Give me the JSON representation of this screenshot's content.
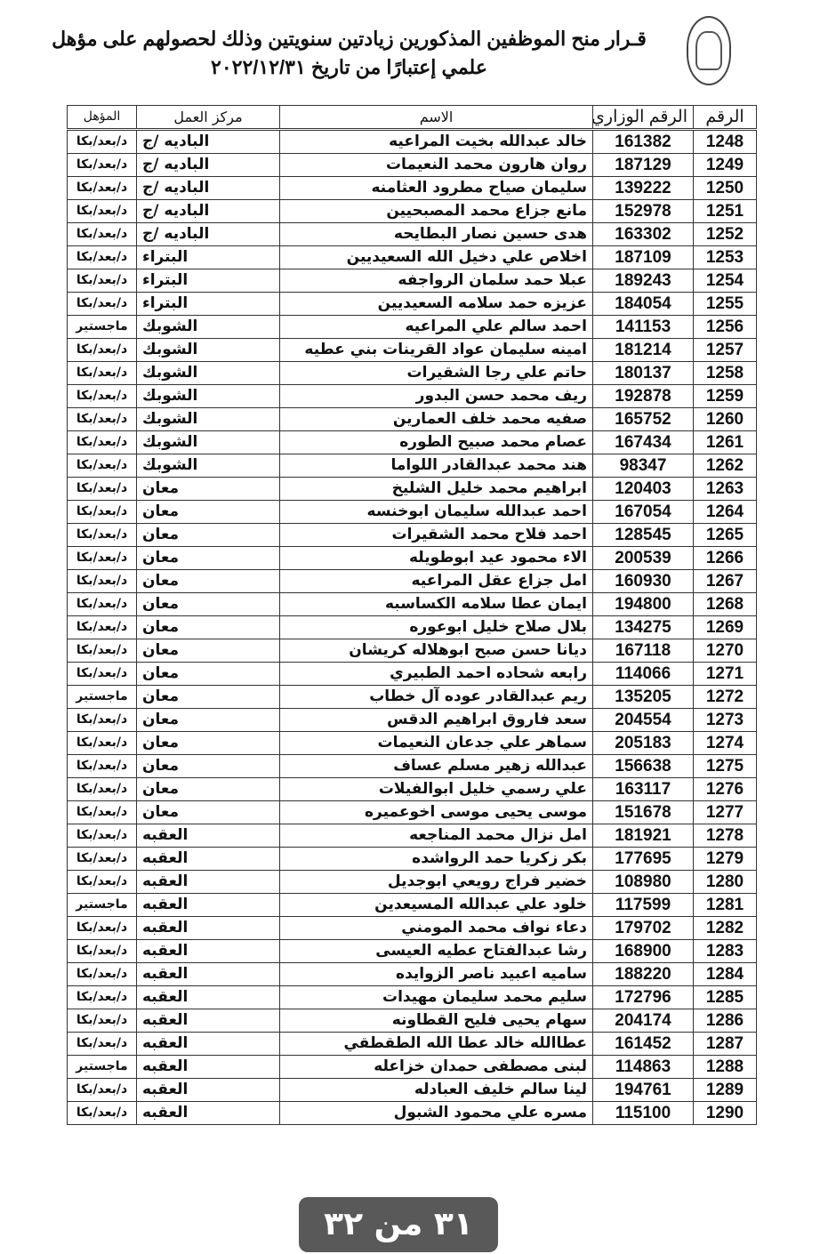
{
  "header": {
    "title_line1": "قـرار منح الموظفين المذكورين زيادتين سنويتين وذلك لحصولهم على مؤهل",
    "title_line2": "علمي إعتبارًا من تاريخ ٢٠٢٢/١٢/٣١",
    "logo": "ministry-emblem"
  },
  "table": {
    "columns": {
      "no": "الرقم",
      "id": "الرقم الوزاري",
      "name": "الاسم",
      "center": "مركز العمل",
      "qual": "المؤهل"
    },
    "rows": [
      [
        "1248",
        "161382",
        "خالد عبدالله بخيت المراعيه",
        "الباديه /ج",
        "د/بعد/بكا"
      ],
      [
        "1249",
        "187129",
        "روان هارون محمد النعيمات",
        "الباديه /ج",
        "د/بعد/بكا"
      ],
      [
        "1250",
        "139222",
        "سليمان صياح مطرود العثامنه",
        "الباديه /ج",
        "د/بعد/بكا"
      ],
      [
        "1251",
        "152978",
        "مانع جزاع محمد المصبحيين",
        "الباديه /ج",
        "د/بعد/بكا"
      ],
      [
        "1252",
        "163302",
        "هدى حسين نصار البطايحه",
        "الباديه /ج",
        "د/بعد/بكا"
      ],
      [
        "1253",
        "187109",
        "اخلاص علي دخيل الله السعيديين",
        "البتراء",
        "د/بعد/بكا"
      ],
      [
        "1254",
        "189243",
        "عبلا حمد سلمان الرواجفه",
        "البتراء",
        "د/بعد/بكا"
      ],
      [
        "1255",
        "184054",
        "عزيزه حمد سلامه السعيديين",
        "البتراء",
        "د/بعد/بكا"
      ],
      [
        "1256",
        "141153",
        "احمد سالم علي المراعيه",
        "الشوبك",
        "ماجستير"
      ],
      [
        "1257",
        "181214",
        "امينه سليمان عواد القرينات بني عطيه",
        "الشوبك",
        "د/بعد/بكا"
      ],
      [
        "1258",
        "180137",
        "حاتم علي رجا الشقيرات",
        "الشوبك",
        "د/بعد/بكا"
      ],
      [
        "1259",
        "192878",
        "ريف محمد حسن البدور",
        "الشوبك",
        "د/بعد/بكا"
      ],
      [
        "1260",
        "165752",
        "صفيه محمد خلف العمارين",
        "الشوبك",
        "د/بعد/بكا"
      ],
      [
        "1261",
        "167434",
        "عصام محمد صبيح الطوره",
        "الشوبك",
        "د/بعد/بكا"
      ],
      [
        "1262",
        "98347",
        "هند محمد عبدالقادر اللواما",
        "الشوبك",
        "د/بعد/بكا"
      ],
      [
        "1263",
        "120403",
        "ابراهيم محمد خليل الشليخ",
        "معان",
        "د/بعد/بكا"
      ],
      [
        "1264",
        "167054",
        "احمد عبدالله سليمان ابوخنسه",
        "معان",
        "د/بعد/بكا"
      ],
      [
        "1265",
        "128545",
        "احمد فلاح محمد الشقيرات",
        "معان",
        "د/بعد/بكا"
      ],
      [
        "1266",
        "200539",
        "الاء محمود عيد ابوطويله",
        "معان",
        "د/بعد/بكا"
      ],
      [
        "1267",
        "160930",
        "امل جزاع عقل المراعيه",
        "معان",
        "د/بعد/بكا"
      ],
      [
        "1268",
        "194800",
        "ايمان عطا سلامه الكساسبه",
        "معان",
        "د/بعد/بكا"
      ],
      [
        "1269",
        "134275",
        "بلال صلاح خليل ابوعوره",
        "معان",
        "د/بعد/بكا"
      ],
      [
        "1270",
        "167118",
        "ديانا حسن صبح ابوهلاله كريشان",
        "معان",
        "د/بعد/بكا"
      ],
      [
        "1271",
        "114066",
        "رابعه شحاده احمد الطبيري",
        "معان",
        "د/بعد/بكا"
      ],
      [
        "1272",
        "135205",
        "ريم عبدالقادر عوده آل خطاب",
        "معان",
        "ماجستير"
      ],
      [
        "1273",
        "204554",
        "سعد فاروق ابراهيم الدقس",
        "معان",
        "د/بعد/بكا"
      ],
      [
        "1274",
        "205183",
        "سماهر علي جدعان النعيمات",
        "معان",
        "د/بعد/بكا"
      ],
      [
        "1275",
        "156638",
        "عبدالله زهير مسلم عساف",
        "معان",
        "د/بعد/بكا"
      ],
      [
        "1276",
        "163117",
        "علي رسمي خليل ابوالفيلات",
        "معان",
        "د/بعد/بكا"
      ],
      [
        "1277",
        "151678",
        "موسى يحيى موسى اخوعميره",
        "معان",
        "د/بعد/بكا"
      ],
      [
        "1278",
        "181921",
        "امل نزال محمد المناجعه",
        "العقبه",
        "د/بعد/بكا"
      ],
      [
        "1279",
        "177695",
        "بكر زكريا حمد الرواشده",
        "العقبه",
        "د/بعد/بكا"
      ],
      [
        "1280",
        "108980",
        "خضير فراج رويعي ابوجديل",
        "العقبه",
        "د/بعد/بكا"
      ],
      [
        "1281",
        "117599",
        "خلود علي عبدالله المسيعدين",
        "العقبه",
        "ماجستير"
      ],
      [
        "1282",
        "179702",
        "دعاء نواف محمد المومني",
        "العقبه",
        "د/بعد/بكا"
      ],
      [
        "1283",
        "168900",
        "رشا عبدالفتاح عطيه العيسى",
        "العقبه",
        "د/بعد/بكا"
      ],
      [
        "1284",
        "188220",
        "ساميه اعبيد ناصر الزوايده",
        "العقبه",
        "د/بعد/بكا"
      ],
      [
        "1285",
        "172796",
        "سليم محمد سليمان مهيدات",
        "العقبه",
        "د/بعد/بكا"
      ],
      [
        "1286",
        "204174",
        "سهام يحيى فليح القطاونه",
        "العقبه",
        "د/بعد/بكا"
      ],
      [
        "1287",
        "161452",
        "عطاالله خالد عطا الله الطقطقي",
        "العقبه",
        "د/بعد/بكا"
      ],
      [
        "1288",
        "114863",
        "لبنى مصطفى حمدان خزاعله",
        "العقبه",
        "ماجستير"
      ],
      [
        "1289",
        "194761",
        "لينا سالم خليف العبادله",
        "العقبه",
        "د/بعد/بكا"
      ],
      [
        "1290",
        "115100",
        "مسره علي محمود الشبول",
        "العقبه",
        "د/بعد/بكا"
      ]
    ]
  },
  "page_indicator": "٣١ من ٣٢"
}
